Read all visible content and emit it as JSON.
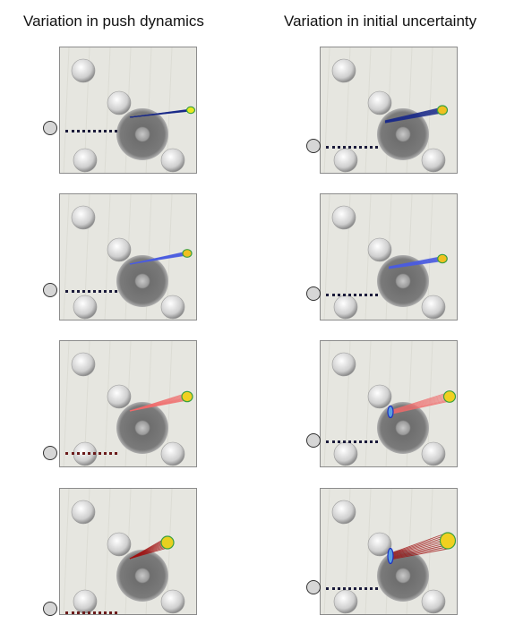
{
  "columns": [
    {
      "title": "Variation in push dynamics"
    },
    {
      "title": "Variation in initial uncertainty"
    }
  ],
  "panels": [
    {
      "column": "push dynamics",
      "row": 1,
      "trajectory_color": "#1a2a8a",
      "end_color": "#e8e820"
    },
    {
      "column": "push dynamics",
      "row": 2,
      "trajectory_color": "#4b5de0",
      "end_color": "#f0c020"
    },
    {
      "column": "push dynamics",
      "row": 3,
      "trajectory_color": "#f06a6a",
      "end_color": "#f0d020"
    },
    {
      "column": "push dynamics",
      "row": 4,
      "trajectory_color": "#a01010",
      "end_color": "#e8d020"
    },
    {
      "column": "initial uncertainty",
      "row": 1,
      "trajectory_color": "#1a2a8a",
      "end_color": "#f0c020"
    },
    {
      "column": "initial uncertainty",
      "row": 2,
      "trajectory_color": "#4b5de0",
      "end_color": "#f0c020"
    },
    {
      "column": "initial uncertainty",
      "row": 3,
      "trajectory_color": "#f06a6a",
      "end_color": "#f0d020"
    },
    {
      "column": "initial uncertainty",
      "row": 4,
      "trajectory_color": "#a01010",
      "end_color": "#f0d020"
    }
  ],
  "colors": {
    "pusher_dots_dark": "#1a1a3a",
    "pusher_dots_red": "#6a1a1a",
    "table_surface": "#e6e6e0"
  }
}
